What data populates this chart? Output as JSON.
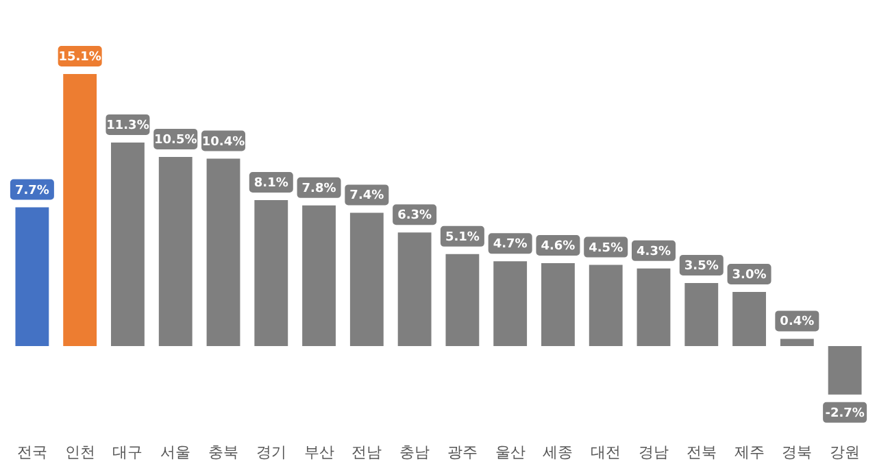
{
  "chart_data": {
    "type": "bar",
    "categories": [
      "전국",
      "인천",
      "대구",
      "서울",
      "충북",
      "경기",
      "부산",
      "전남",
      "충남",
      "광주",
      "울산",
      "세종",
      "대전",
      "경남",
      "전북",
      "제주",
      "경북",
      "강원"
    ],
    "values": [
      7.7,
      15.1,
      11.3,
      10.5,
      10.4,
      8.1,
      7.8,
      7.4,
      6.3,
      5.1,
      4.7,
      4.6,
      4.5,
      4.3,
      3.5,
      3.0,
      0.4,
      -2.7
    ],
    "value_labels": [
      "7.7%",
      "15.1%",
      "11.3%",
      "10.5%",
      "10.4%",
      "8.1%",
      "7.8%",
      "7.4%",
      "6.3%",
      "5.1%",
      "4.7%",
      "4.6%",
      "4.5%",
      "4.3%",
      "3.5%",
      "3.0%",
      "0.4%",
      "-2.7%"
    ],
    "colors": [
      "#4472c4",
      "#ed7d31",
      "#7f7f7f",
      "#7f7f7f",
      "#7f7f7f",
      "#7f7f7f",
      "#7f7f7f",
      "#7f7f7f",
      "#7f7f7f",
      "#7f7f7f",
      "#7f7f7f",
      "#7f7f7f",
      "#7f7f7f",
      "#7f7f7f",
      "#7f7f7f",
      "#7f7f7f",
      "#7f7f7f",
      "#7f7f7f"
    ]
  }
}
